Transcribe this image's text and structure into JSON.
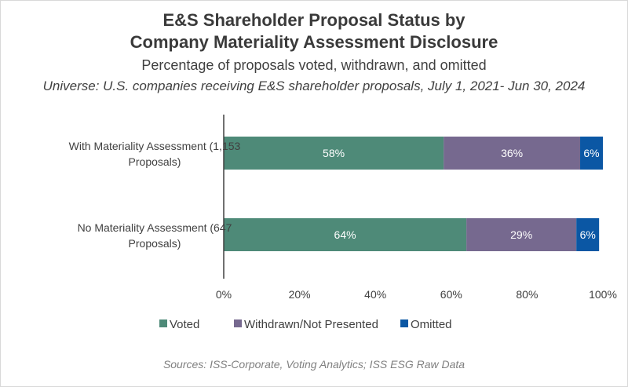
{
  "chart_data": {
    "type": "bar",
    "orientation": "horizontal",
    "stacked": true,
    "title_lines": [
      "E&S Shareholder Proposal Status by",
      "Company Materiality Assessment Disclosure"
    ],
    "subtitle": "Percentage of proposals voted, withdrawn, and omitted",
    "universe": "Universe: U.S. companies receiving E&S shareholder proposals, July 1, 2021- Jun 30, 2024",
    "categories": [
      {
        "lines": [
          "With Materiality Assessment (1,153",
          "Proposals)"
        ]
      },
      {
        "lines": [
          "No Materiality Assessment (647",
          "Proposals)"
        ]
      }
    ],
    "series": [
      {
        "name": "Voted",
        "color": "#4e8a78",
        "values": [
          58,
          64
        ],
        "labels": [
          "58%",
          "64%"
        ]
      },
      {
        "name": "Withdrawn/Not Presented",
        "color": "#76698f",
        "values": [
          36,
          29
        ],
        "labels": [
          "36%",
          "29%"
        ]
      },
      {
        "name": "Omitted",
        "color": "#0b57a4",
        "values": [
          6,
          6
        ],
        "labels": [
          "6%",
          "6%"
        ]
      }
    ],
    "xlim": [
      0,
      100
    ],
    "xticks": [
      {
        "value": 0,
        "label": "0%"
      },
      {
        "value": 20,
        "label": "20%"
      },
      {
        "value": 40,
        "label": "40%"
      },
      {
        "value": 60,
        "label": "60%"
      },
      {
        "value": 80,
        "label": "80%"
      },
      {
        "value": 100,
        "label": "100%"
      }
    ],
    "legend_position": "bottom",
    "grid": false
  },
  "source": "Sources: ISS-Corporate, Voting Analytics; ISS ESG Raw Data"
}
